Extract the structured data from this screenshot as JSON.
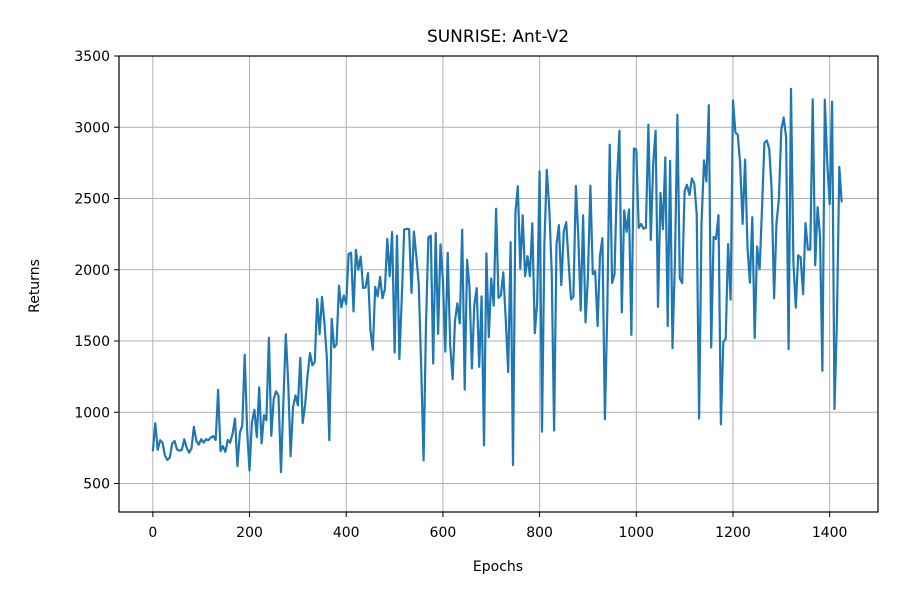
{
  "chart_data": {
    "type": "line",
    "title": "SUNRISE: Ant-V2",
    "xlabel": "Epochs",
    "ylabel": "Returns",
    "xlim": [
      -70,
      1500
    ],
    "ylim": [
      300,
      3500
    ],
    "xticks": [
      0,
      200,
      400,
      600,
      800,
      1000,
      1200,
      1400
    ],
    "yticks": [
      500,
      1000,
      1500,
      2000,
      2500,
      3000,
      3500
    ],
    "grid": true,
    "series": [
      {
        "name": "returns",
        "color": "#1f77b4",
        "x_start": 0,
        "x_end": 1425,
        "x_step": 5,
        "trend": [
          [
            0,
            700
          ],
          [
            100,
            780
          ],
          [
            150,
            840
          ],
          [
            200,
            880
          ],
          [
            250,
            950
          ],
          [
            300,
            1050
          ],
          [
            350,
            1600
          ],
          [
            400,
            1850
          ],
          [
            500,
            1900
          ],
          [
            600,
            1750
          ],
          [
            700,
            1800
          ],
          [
            780,
            1850
          ],
          [
            800,
            2200
          ],
          [
            900,
            2250
          ],
          [
            1000,
            2300
          ],
          [
            1100,
            2300
          ],
          [
            1200,
            2350
          ],
          [
            1300,
            2400
          ],
          [
            1350,
            2200
          ],
          [
            1425,
            2300
          ]
        ],
        "spread": [
          [
            0,
            150
          ],
          [
            100,
            60
          ],
          [
            150,
            120
          ],
          [
            200,
            250
          ],
          [
            300,
            350
          ],
          [
            350,
            450
          ],
          [
            400,
            400
          ],
          [
            500,
            550
          ],
          [
            600,
            700
          ],
          [
            700,
            700
          ],
          [
            800,
            500
          ],
          [
            900,
            650
          ],
          [
            1000,
            850
          ],
          [
            1200,
            900
          ],
          [
            1300,
            950
          ],
          [
            1425,
            1000
          ]
        ],
        "max": [
          [
            0,
            950
          ],
          [
            100,
            900
          ],
          [
            150,
            1300
          ],
          [
            200,
            1450
          ],
          [
            300,
            1650
          ],
          [
            400,
            2100
          ],
          [
            500,
            2300
          ],
          [
            600,
            2250
          ],
          [
            650,
            2550
          ],
          [
            700,
            2550
          ],
          [
            800,
            2800
          ],
          [
            1000,
            3050
          ],
          [
            1100,
            3150
          ],
          [
            1200,
            3200
          ],
          [
            1300,
            3250
          ],
          [
            1400,
            3350
          ],
          [
            1425,
            3270
          ]
        ],
        "min": [
          [
            0,
            450
          ],
          [
            100,
            720
          ],
          [
            200,
            560
          ],
          [
            300,
            560
          ],
          [
            400,
            800
          ],
          [
            500,
            620
          ],
          [
            580,
            510
          ],
          [
            700,
            600
          ],
          [
            780,
            620
          ],
          [
            850,
            700
          ],
          [
            1000,
            780
          ],
          [
            1200,
            700
          ],
          [
            1300,
            650
          ],
          [
            1400,
            800
          ],
          [
            1425,
            830
          ]
        ]
      }
    ]
  }
}
